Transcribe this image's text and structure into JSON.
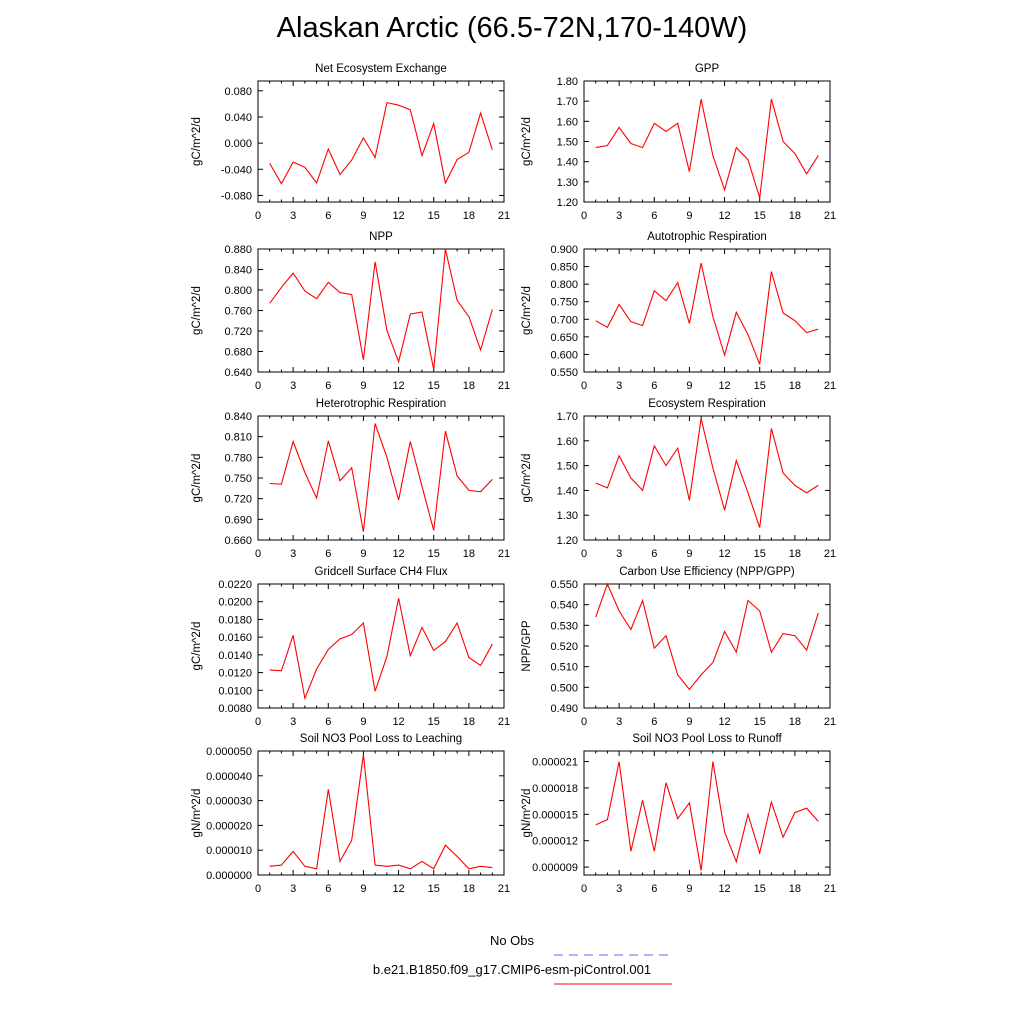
{
  "title": "Alaskan Arctic (66.5-72N,170-140W)",
  "legend": {
    "obs_label": "No Obs",
    "model_label": "b.e21.B1850.f09_g17.CMIP6-esm-piControl.001",
    "obs_color": "#6666ff",
    "model_color": "#ff0000"
  },
  "chart_data": [
    {
      "type": "line",
      "title": "Net Ecosystem Exchange",
      "xlabel": "",
      "ylabel": "gC/m^2/d",
      "xlim": [
        0,
        21
      ],
      "ylim": [
        -0.09,
        0.095
      ],
      "xticks": [
        0,
        3,
        6,
        9,
        12,
        15,
        18,
        21
      ],
      "yticks": [
        -0.08,
        -0.04,
        0.0,
        0.04,
        0.08
      ],
      "ytick_labels": [
        "-0.080",
        "-0.040",
        "0.000",
        "0.040",
        "0.080"
      ],
      "series": [
        {
          "x": [
            1,
            2,
            3,
            4,
            5,
            6,
            7,
            8,
            9,
            10,
            11,
            12,
            13,
            14,
            15,
            16,
            17,
            18,
            19,
            20
          ],
          "values": [
            -0.031,
            -0.062,
            -0.029,
            -0.037,
            -0.061,
            -0.009,
            -0.048,
            -0.026,
            0.008,
            -0.022,
            0.062,
            0.058,
            0.051,
            -0.019,
            0.03,
            -0.061,
            -0.025,
            -0.014,
            0.046,
            -0.01
          ]
        }
      ]
    },
    {
      "type": "line",
      "title": "GPP",
      "xlabel": "",
      "ylabel": "gC/m^2/d",
      "xlim": [
        0,
        21
      ],
      "ylim": [
        1.2,
        1.8
      ],
      "xticks": [
        0,
        3,
        6,
        9,
        12,
        15,
        18,
        21
      ],
      "yticks": [
        1.2,
        1.3,
        1.4,
        1.5,
        1.6,
        1.7,
        1.8
      ],
      "ytick_labels": [
        "1.20",
        "1.30",
        "1.40",
        "1.50",
        "1.60",
        "1.70",
        "1.80"
      ],
      "series": [
        {
          "x": [
            1,
            2,
            3,
            4,
            5,
            6,
            7,
            8,
            9,
            10,
            11,
            12,
            13,
            14,
            15,
            16,
            17,
            18,
            19,
            20
          ],
          "values": [
            1.47,
            1.48,
            1.57,
            1.49,
            1.47,
            1.59,
            1.55,
            1.59,
            1.35,
            1.71,
            1.43,
            1.26,
            1.47,
            1.41,
            1.22,
            1.71,
            1.5,
            1.44,
            1.34,
            1.43
          ]
        }
      ]
    },
    {
      "type": "line",
      "title": "NPP",
      "xlabel": "",
      "ylabel": "gC/m^2/d",
      "xlim": [
        0,
        21
      ],
      "ylim": [
        0.64,
        0.88
      ],
      "xticks": [
        0,
        3,
        6,
        9,
        12,
        15,
        18,
        21
      ],
      "yticks": [
        0.64,
        0.68,
        0.72,
        0.76,
        0.8,
        0.84,
        0.88
      ],
      "ytick_labels": [
        "0.640",
        "0.680",
        "0.720",
        "0.760",
        "0.800",
        "0.840",
        "0.880"
      ],
      "series": [
        {
          "x": [
            1,
            2,
            3,
            4,
            5,
            6,
            7,
            8,
            9,
            10,
            11,
            12,
            13,
            14,
            15,
            16,
            17,
            18,
            19,
            20
          ],
          "values": [
            0.774,
            0.805,
            0.833,
            0.798,
            0.783,
            0.815,
            0.795,
            0.791,
            0.664,
            0.855,
            0.721,
            0.66,
            0.753,
            0.757,
            0.645,
            0.88,
            0.78,
            0.748,
            0.683,
            0.762
          ]
        }
      ]
    },
    {
      "type": "line",
      "title": "Autotrophic Respiration",
      "xlabel": "",
      "ylabel": "gC/m^2/d",
      "xlim": [
        0,
        21
      ],
      "ylim": [
        0.55,
        0.9
      ],
      "xticks": [
        0,
        3,
        6,
        9,
        12,
        15,
        18,
        21
      ],
      "yticks": [
        0.55,
        0.6,
        0.65,
        0.7,
        0.75,
        0.8,
        0.85,
        0.9
      ],
      "ytick_labels": [
        "0.550",
        "0.600",
        "0.650",
        "0.700",
        "0.750",
        "0.800",
        "0.850",
        "0.900"
      ],
      "series": [
        {
          "x": [
            1,
            2,
            3,
            4,
            5,
            6,
            7,
            8,
            9,
            10,
            11,
            12,
            13,
            14,
            15,
            16,
            17,
            18,
            19,
            20
          ],
          "values": [
            0.696,
            0.677,
            0.742,
            0.693,
            0.682,
            0.781,
            0.753,
            0.804,
            0.688,
            0.86,
            0.708,
            0.598,
            0.72,
            0.656,
            0.572,
            0.836,
            0.718,
            0.696,
            0.662,
            0.672
          ]
        }
      ]
    },
    {
      "type": "line",
      "title": "Heterotrophic Respiration",
      "xlabel": "",
      "ylabel": "gC/m^2/d",
      "xlim": [
        0,
        21
      ],
      "ylim": [
        0.66,
        0.84
      ],
      "xticks": [
        0,
        3,
        6,
        9,
        12,
        15,
        18,
        21
      ],
      "yticks": [
        0.66,
        0.69,
        0.72,
        0.75,
        0.78,
        0.81,
        0.84
      ],
      "ytick_labels": [
        "0.660",
        "0.690",
        "0.720",
        "0.750",
        "0.780",
        "0.810",
        "0.840"
      ],
      "series": [
        {
          "x": [
            1,
            2,
            3,
            4,
            5,
            6,
            7,
            8,
            9,
            10,
            11,
            12,
            13,
            14,
            15,
            16,
            17,
            18,
            19,
            20
          ],
          "values": [
            0.742,
            0.741,
            0.803,
            0.758,
            0.721,
            0.804,
            0.746,
            0.765,
            0.672,
            0.829,
            0.78,
            0.718,
            0.803,
            0.738,
            0.674,
            0.818,
            0.753,
            0.732,
            0.73,
            0.748
          ]
        }
      ]
    },
    {
      "type": "line",
      "title": "Ecosystem Respiration",
      "xlabel": "",
      "ylabel": "gC/m^2/d",
      "xlim": [
        0,
        21
      ],
      "ylim": [
        1.2,
        1.7
      ],
      "xticks": [
        0,
        3,
        6,
        9,
        12,
        15,
        18,
        21
      ],
      "yticks": [
        1.2,
        1.3,
        1.4,
        1.5,
        1.6,
        1.7
      ],
      "ytick_labels": [
        "1.20",
        "1.30",
        "1.40",
        "1.50",
        "1.60",
        "1.70"
      ],
      "series": [
        {
          "x": [
            1,
            2,
            3,
            4,
            5,
            6,
            7,
            8,
            9,
            10,
            11,
            12,
            13,
            14,
            15,
            16,
            17,
            18,
            19,
            20
          ],
          "values": [
            1.43,
            1.41,
            1.54,
            1.45,
            1.4,
            1.58,
            1.5,
            1.57,
            1.36,
            1.69,
            1.49,
            1.32,
            1.52,
            1.39,
            1.25,
            1.65,
            1.47,
            1.42,
            1.39,
            1.42
          ]
        }
      ]
    },
    {
      "type": "line",
      "title": "Gridcell Surface CH4 Flux",
      "xlabel": "",
      "ylabel": "gC/m^2/d",
      "xlim": [
        0,
        21
      ],
      "ylim": [
        0.008,
        0.022
      ],
      "xticks": [
        0,
        3,
        6,
        9,
        12,
        15,
        18,
        21
      ],
      "yticks": [
        0.008,
        0.01,
        0.012,
        0.014,
        0.016,
        0.018,
        0.02,
        0.022
      ],
      "ytick_labels": [
        "0.0080",
        "0.0100",
        "0.0120",
        "0.0140",
        "0.0160",
        "0.0180",
        "0.0200",
        "0.0220"
      ],
      "series": [
        {
          "x": [
            1,
            2,
            3,
            4,
            5,
            6,
            7,
            8,
            9,
            10,
            11,
            12,
            13,
            14,
            15,
            16,
            17,
            18,
            19,
            20
          ],
          "values": [
            0.0123,
            0.0122,
            0.0162,
            0.0091,
            0.0124,
            0.0146,
            0.0158,
            0.0163,
            0.0176,
            0.0099,
            0.0138,
            0.0204,
            0.0139,
            0.0171,
            0.0145,
            0.0155,
            0.0176,
            0.0137,
            0.0128,
            0.0152
          ]
        }
      ]
    },
    {
      "type": "line",
      "title": "Carbon Use Efficiency (NPP/GPP)",
      "xlabel": "",
      "ylabel": "NPP/GPP",
      "xlim": [
        0,
        21
      ],
      "ylim": [
        0.49,
        0.55
      ],
      "xticks": [
        0,
        3,
        6,
        9,
        12,
        15,
        18,
        21
      ],
      "yticks": [
        0.49,
        0.5,
        0.51,
        0.52,
        0.53,
        0.54,
        0.55
      ],
      "ytick_labels": [
        "0.490",
        "0.500",
        "0.510",
        "0.520",
        "0.530",
        "0.540",
        "0.550"
      ],
      "series": [
        {
          "x": [
            1,
            2,
            3,
            4,
            5,
            6,
            7,
            8,
            9,
            10,
            11,
            12,
            13,
            14,
            15,
            16,
            17,
            18,
            19,
            20
          ],
          "values": [
            0.534,
            0.55,
            0.537,
            0.528,
            0.542,
            0.519,
            0.525,
            0.506,
            0.499,
            0.506,
            0.512,
            0.527,
            0.517,
            0.542,
            0.537,
            0.517,
            0.526,
            0.525,
            0.518,
            0.536
          ]
        }
      ]
    },
    {
      "type": "line",
      "title": "Soil NO3 Pool Loss to Leaching",
      "xlabel": "",
      "ylabel": "gN/m^2/d",
      "xlim": [
        0,
        21
      ],
      "ylim": [
        0.0,
        5e-05
      ],
      "xticks": [
        0,
        3,
        6,
        9,
        12,
        15,
        18,
        21
      ],
      "yticks": [
        0.0,
        1e-05,
        2e-05,
        3e-05,
        4e-05,
        5e-05
      ],
      "ytick_labels": [
        "0.000000",
        "0.000010",
        "0.000020",
        "0.000030",
        "0.000040",
        "0.000050"
      ],
      "series": [
        {
          "x": [
            1,
            2,
            3,
            4,
            5,
            6,
            7,
            8,
            9,
            10,
            11,
            12,
            13,
            14,
            15,
            16,
            17,
            18,
            19,
            20
          ],
          "values": [
            3.5e-06,
            4e-06,
            9.5e-06,
            3.5e-06,
            2.5e-06,
            3.45e-05,
            5.5e-06,
            1.4e-05,
            4.85e-05,
            4e-06,
            3.5e-06,
            4e-06,
            2.5e-06,
            5.5e-06,
            2.5e-06,
            1.2e-05,
            7.5e-06,
            2.5e-06,
            3.5e-06,
            3e-06
          ]
        }
      ]
    },
    {
      "type": "line",
      "title": "Soil NO3 Pool Loss to Runoff",
      "xlabel": "",
      "ylabel": "gN/m^2/d",
      "xlim": [
        0,
        21
      ],
      "ylim": [
        8.1e-06,
        2.22e-05
      ],
      "xticks": [
        0,
        3,
        6,
        9,
        12,
        15,
        18,
        21
      ],
      "yticks": [
        9e-06,
        1.2e-05,
        1.5e-05,
        1.8e-05,
        2.1e-05
      ],
      "ytick_labels": [
        "0.000009",
        "0.000012",
        "0.000015",
        "0.000018",
        "0.000021"
      ],
      "series": [
        {
          "x": [
            1,
            2,
            3,
            4,
            5,
            6,
            7,
            8,
            9,
            10,
            11,
            12,
            13,
            14,
            15,
            16,
            17,
            18,
            19,
            20
          ],
          "values": [
            1.38e-05,
            1.44e-05,
            2.1e-05,
            1.08e-05,
            1.66e-05,
            1.08e-05,
            1.86e-05,
            1.45e-05,
            1.63e-05,
            8.6e-06,
            2.1e-05,
            1.3e-05,
            9.6e-06,
            1.5e-05,
            1.06e-05,
            1.64e-05,
            1.24e-05,
            1.52e-05,
            1.57e-05,
            1.42e-05
          ]
        }
      ]
    }
  ]
}
